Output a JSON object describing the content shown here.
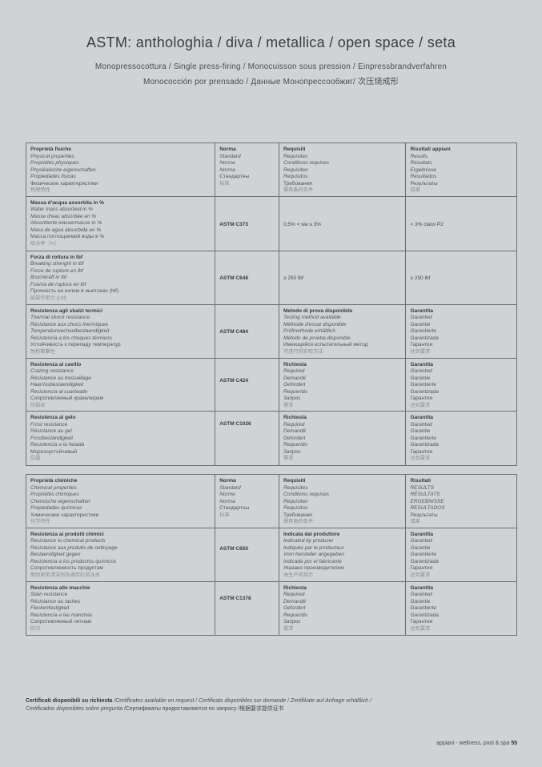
{
  "colors": {
    "background": "#d1d2d3",
    "border": "#6e6f72",
    "text_primary": "#38393b",
    "text_secondary": "#55565a",
    "text_light": "#8b8d90"
  },
  "header": {
    "title": "ASTM: anthologhia / diva / metallica / open space / seta",
    "subtitle1": "Monopressocottura / Single press-firing / Monocuisson sous pression / Einpressbrandverfahren",
    "subtitle2": "Monococción por prensado / Данные Монопрессообжиг/ 次压烧成形"
  },
  "table1": {
    "header": {
      "property": {
        "it": "Proprietà fisiche",
        "langs": [
          "Physical properties",
          "Propriétés physiques",
          "Physikalische eigenschaften",
          "Propiedades físicas"
        ],
        "ru": "Физические характеристики",
        "zh": "物理特性"
      },
      "norma": {
        "it": "Norma",
        "langs": [
          "Standard",
          "Norme",
          "Norma"
        ],
        "ru": "Стандартны",
        "zh": "标准"
      },
      "requisiti": {
        "it": "Requisiti",
        "langs": [
          "Requisites",
          "Conditions requises",
          "Requisiten",
          "Requisitos"
        ],
        "ru": "Требования",
        "zh": "需具备的条件"
      },
      "risultati": {
        "it": "Risultati appiani",
        "langs": [
          "Results",
          "Résultats",
          "Ergebnisse",
          "Resultados"
        ],
        "ru": "Результаты",
        "zh": "成果"
      }
    },
    "rows": [
      {
        "property": {
          "it": "Massa d'acqua assorbita in %",
          "langs": [
            "Water mass absorbed in %",
            "Masse d'eau absorbée en %",
            "Absorbierte wassermasse in %",
            "Masa de agua absorbida en %"
          ],
          "ru": "Масса поглощаемой воды в %",
          "zh": "吸水率（%）"
        },
        "norma": "ASTM C373",
        "requisito": "0,5% < wa ≤ 3%",
        "risultato": "< 3% class P2"
      },
      {
        "property": {
          "it": "Forza di rottura in lbf",
          "langs": [
            "Breaking strenght in lbf",
            "Force de rupture en lbf",
            "Bruchkraft in lbf",
            "Fuerza de ruptura en lbf"
          ],
          "ru": "Прочность на излом в ньютонах (lbf)",
          "zh": "破裂作用力 (Lbf)"
        },
        "norma": "ASTM C648",
        "requisito": "≥ 250 lbf",
        "risultato": "≥ 250 lbf"
      },
      {
        "property": {
          "it": "Resistenza agli sbalzi termici",
          "langs": [
            "Thermal shock resistance",
            "Résistance aux chocs thermiques",
            "Temperaturwechselbestaendigkeit",
            "Resistencia a los choques térmicos"
          ],
          "ru": "Устойчивость к перепаду температур",
          "zh": "耐熱衝擊性"
        },
        "norma": "ASTM C484",
        "requisiti": {
          "it": "Metodo di prova disponibile",
          "langs": [
            "Testing method available",
            "Méthode d'essai disponible",
            "Prüfmethode erhältlich",
            "Método de prueba disponible"
          ],
          "ru": "Имеющийся испытательный метод",
          "zh": "可进行的实验方法"
        },
        "risultati": {
          "it": "Garantita",
          "langs": [
            "Garanted",
            "Garantie",
            "Garantierte",
            "Garantizada"
          ],
          "ru": "Гарантия",
          "zh": "达到要求"
        }
      },
      {
        "property": {
          "it": "Resistenza al cavillo",
          "langs": [
            "Crazing resistance",
            "Résistance au tressaillage",
            "Haarrissbestaendigkeit",
            "Resistencia al cuarteado"
          ],
          "ru": "Сопротивляемый кракелюрам",
          "zh": "防裂纹"
        },
        "norma": "ASTM C424",
        "requisiti": {
          "it": "Richiesta",
          "langs": [
            "Required",
            "Demandé",
            "Gefordert",
            "Requerido"
          ],
          "ru": "Запрос",
          "zh": "需求"
        },
        "risultati": {
          "it": "Garantita",
          "langs": [
            "Garanted",
            "Garantie",
            "Garantierte",
            "Garantizada"
          ],
          "ru": "Гарантия",
          "zh": "达到要求"
        }
      },
      {
        "property": {
          "it": "Resistenza al gelo",
          "langs": [
            "Frost resistance",
            "Résistance au gel",
            "Frostbeständigkeit",
            "Resistencia a la helada"
          ],
          "ru": "Морозоустойчивый",
          "zh": "防霜"
        },
        "norma": "ASTM C1026",
        "requisiti": {
          "it": "Richiesta",
          "langs": [
            "Required",
            "Demandé",
            "Gefordert",
            "Requerido"
          ],
          "ru": "Запрос",
          "zh": "需求"
        },
        "risultati": {
          "it": "Garantita",
          "langs": [
            "Garanted",
            "Garantie",
            "Garantierte",
            "Garantizada"
          ],
          "ru": "Гарантия",
          "zh": "达到要求"
        }
      }
    ]
  },
  "table2": {
    "header": {
      "property": {
        "it": "Proprietà chimiche",
        "langs": [
          "Chemical properties",
          "Propriétés chimiques",
          "Chemische eigenschaften",
          "Propiedades químicas"
        ],
        "ru": "Химические характеристики",
        "zh": "化学特性"
      },
      "norma": {
        "it": "Norma",
        "langs": [
          "Standard",
          "Norme",
          "Norma"
        ],
        "ru": "Стандартны",
        "zh": "标准"
      },
      "requisiti": {
        "it": "Requisiti",
        "langs": [
          "Requisites",
          "Conditions requises",
          "Requisiten",
          "Requisitos"
        ],
        "ru": "Требования",
        "zh": "需具备的条件"
      },
      "risultati": {
        "it": "Risultati",
        "langs": [
          "RESULTS",
          "RÉSULTATS",
          "ERGEBNISSE",
          "RESULTADOS"
        ],
        "ru": "Результаты",
        "zh": "成果"
      }
    },
    "rows": [
      {
        "property": {
          "it": "Resistenza ai prodotti chimici",
          "langs": [
            "Resistance to chemical products",
            "Résistance aux produits de nettoyage",
            "Bestaendigkeit gegen",
            "Resistencia a los productos químicos"
          ],
          "ru": "Сопротивляемость продуктам",
          "zh": "能耐家用清洁剂及通用的游泳池"
        },
        "norma": "ASTM C650",
        "requisiti": {
          "it": "Indicata dal produttore",
          "langs": [
            "Indicated by producer",
            "Indiquée par le producteur",
            "Vom hersteller angegeben",
            "Indicada por el fabricante"
          ],
          "ru": "Указано производителем",
          "zh": "由生产商指示"
        },
        "risultati": {
          "it": "Garantita",
          "langs": [
            "Garanted",
            "Garantie",
            "Garantierte",
            "Garantizada"
          ],
          "ru": "Гарантия",
          "zh": "达到要求"
        }
      },
      {
        "property": {
          "it": "Resistenza alle macchie",
          "langs": [
            "Stain resistance",
            "Résistance au taches",
            "Fleckenfestigkeit",
            "Resistencia a las manchas"
          ],
          "ru": "Сопротивляемый пятнам",
          "zh": "防污"
        },
        "norma": "ASTM C1378",
        "requisiti": {
          "it": "Richiesta",
          "langs": [
            "Required",
            "Demandé",
            "Gefordert",
            "Requerido"
          ],
          "ru": "Запрос",
          "zh": "需求"
        },
        "risultati": {
          "it": "Garantita",
          "langs": [
            "Garanted",
            "Garantie",
            "Garantierte",
            "Garantizada"
          ],
          "ru": "Гарантия",
          "zh": "达到要求"
        }
      }
    ]
  },
  "certifications": {
    "line1_bold": "Certificati disponibili su richiesta",
    "line1_rest": "/Certificates available on request / Certificats disponibles sur demande / Zertifikate auf Anfrage erhältlich /",
    "line2_italic": "Certificados disponibles sobre pregunta",
    "line2_rest": "/Сертификаты предоставляются по запросу /根据要求提供证书"
  },
  "page_footer": {
    "brand": "appiani - wellness, pool & spa",
    "page_number": "55"
  }
}
